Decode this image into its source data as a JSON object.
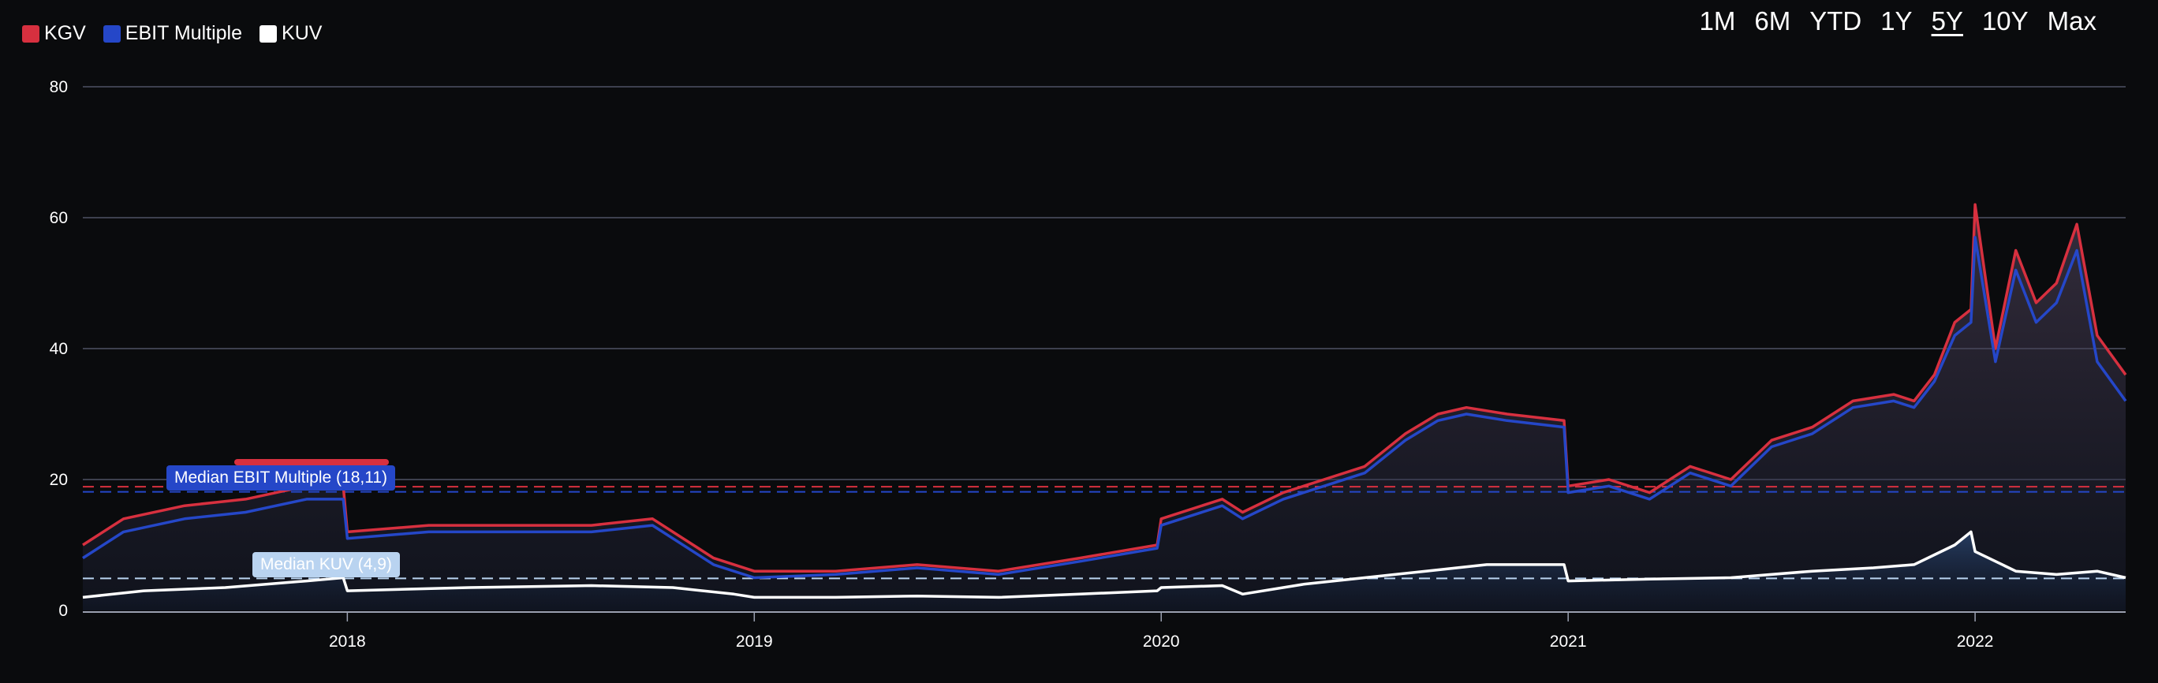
{
  "legend": [
    {
      "label": "KGV",
      "color": "#d7303f"
    },
    {
      "label": "EBIT Multiple",
      "color": "#2547c8"
    },
    {
      "label": "KUV",
      "color": "#ffffff"
    }
  ],
  "ranges": [
    "1M",
    "6M",
    "YTD",
    "1Y",
    "5Y",
    "10Y",
    "Max"
  ],
  "active_range": "5Y",
  "medians": {
    "kgv_label": "",
    "ebit_label": "Median EBIT Multiple (18,11)",
    "kuv_label": "Median KUV (4,9)"
  },
  "chart_data": {
    "type": "line",
    "ylim": [
      0,
      80
    ],
    "yticks": [
      0,
      20,
      40,
      60,
      80
    ],
    "xlim": [
      2017.35,
      2022.37
    ],
    "xticks": [
      {
        "label": "2018",
        "value": 2018
      },
      {
        "label": "2019",
        "value": 2019
      },
      {
        "label": "2020",
        "value": 2020
      },
      {
        "label": "2021",
        "value": 2021
      },
      {
        "label": "2022",
        "value": 2022
      }
    ],
    "grid": true,
    "legend_position": "top-left",
    "medians": [
      {
        "series": "KGV",
        "value": 18.9
      },
      {
        "series": "EBIT Multiple",
        "value": 18.11
      },
      {
        "series": "KUV",
        "value": 4.9
      }
    ],
    "series": [
      {
        "name": "KGV",
        "color": "#d7303f",
        "x": [
          2017.35,
          2017.45,
          2017.6,
          2017.75,
          2017.9,
          2017.99,
          2018.0,
          2018.2,
          2018.4,
          2018.6,
          2018.75,
          2018.9,
          2019.0,
          2019.2,
          2019.4,
          2019.6,
          2019.8,
          2019.99,
          2020.0,
          2020.15,
          2020.2,
          2020.3,
          2020.4,
          2020.5,
          2020.6,
          2020.68,
          2020.75,
          2020.85,
          2020.99,
          2021.0,
          2021.1,
          2021.2,
          2021.3,
          2021.4,
          2021.5,
          2021.6,
          2021.7,
          2021.8,
          2021.85,
          2021.9,
          2021.95,
          2021.99,
          2022.0,
          2022.05,
          2022.1,
          2022.15,
          2022.2,
          2022.25,
          2022.3,
          2022.37
        ],
        "values": [
          10,
          14,
          16,
          17,
          19,
          19,
          12,
          13,
          13,
          13,
          14,
          8,
          6,
          6,
          7,
          6,
          8,
          10,
          14,
          17,
          15,
          18,
          20,
          22,
          27,
          30,
          31,
          30,
          29,
          19,
          20,
          18,
          22,
          20,
          26,
          28,
          32,
          33,
          32,
          36,
          44,
          46,
          62,
          40,
          55,
          47,
          50,
          59,
          42,
          36
        ]
      },
      {
        "name": "EBIT Multiple",
        "color": "#2547c8",
        "x": [
          2017.35,
          2017.45,
          2017.6,
          2017.75,
          2017.9,
          2017.99,
          2018.0,
          2018.2,
          2018.4,
          2018.6,
          2018.75,
          2018.9,
          2019.0,
          2019.2,
          2019.4,
          2019.6,
          2019.8,
          2019.99,
          2020.0,
          2020.15,
          2020.2,
          2020.3,
          2020.4,
          2020.5,
          2020.6,
          2020.68,
          2020.75,
          2020.85,
          2020.99,
          2021.0,
          2021.1,
          2021.2,
          2021.3,
          2021.4,
          2021.5,
          2021.6,
          2021.7,
          2021.8,
          2021.85,
          2021.9,
          2021.95,
          2021.99,
          2022.0,
          2022.05,
          2022.1,
          2022.15,
          2022.2,
          2022.25,
          2022.3,
          2022.37
        ],
        "values": [
          8,
          12,
          14,
          15,
          17,
          17,
          11,
          12,
          12,
          12,
          13,
          7,
          5,
          5.5,
          6.5,
          5.5,
          7.5,
          9.5,
          13,
          16,
          14,
          17,
          19,
          21,
          26,
          29,
          30,
          29,
          28,
          18,
          19,
          17,
          21,
          19,
          25,
          27,
          31,
          32,
          31,
          35,
          42,
          44,
          57,
          38,
          52,
          44,
          47,
          55,
          38,
          32
        ]
      },
      {
        "name": "KUV",
        "color": "#ffffff",
        "x": [
          2017.35,
          2017.5,
          2017.7,
          2017.9,
          2017.99,
          2018.0,
          2018.3,
          2018.6,
          2018.8,
          2018.95,
          2019.0,
          2019.2,
          2019.4,
          2019.6,
          2019.8,
          2019.99,
          2020.0,
          2020.15,
          2020.2,
          2020.35,
          2020.5,
          2020.65,
          2020.8,
          2020.99,
          2021.0,
          2021.2,
          2021.4,
          2021.6,
          2021.75,
          2021.85,
          2021.95,
          2021.99,
          2022.0,
          2022.1,
          2022.2,
          2022.3,
          2022.37
        ],
        "values": [
          2,
          3,
          3.5,
          4.5,
          5,
          3,
          3.5,
          3.8,
          3.5,
          2.5,
          2,
          2,
          2.2,
          2,
          2.5,
          3,
          3.5,
          3.8,
          2.5,
          4,
          5,
          6,
          7,
          7,
          4.5,
          4.8,
          5,
          6,
          6.5,
          7,
          10,
          12,
          9,
          6,
          5.5,
          6,
          5
        ]
      }
    ]
  }
}
